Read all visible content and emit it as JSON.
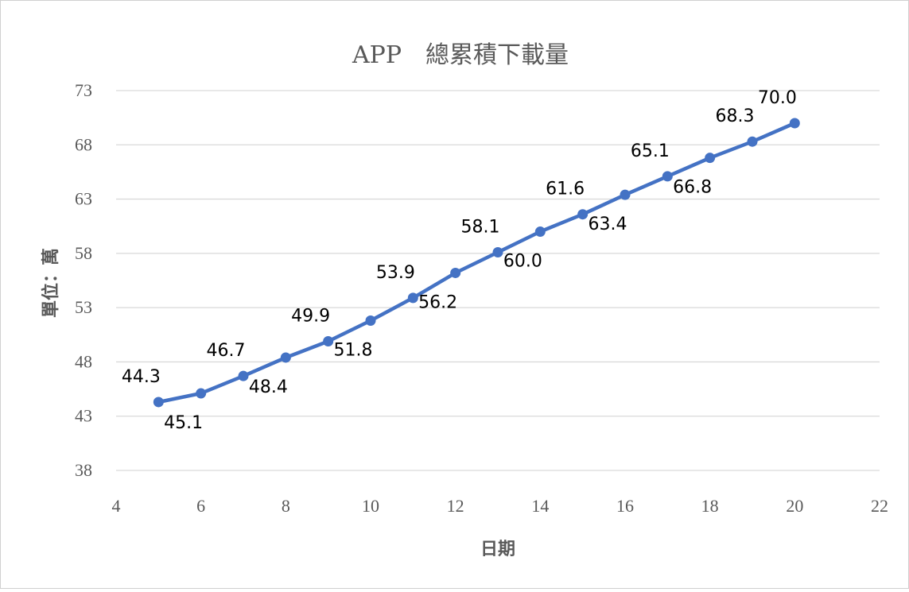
{
  "chart_data": {
    "type": "line",
    "title": "APP　總累積下載量",
    "xlabel": "日期",
    "ylabel": "單位：萬",
    "xlim": [
      4,
      22
    ],
    "ylim": [
      38,
      73
    ],
    "xticks": [
      4,
      6,
      8,
      10,
      12,
      14,
      16,
      18,
      20,
      22
    ],
    "yticks": [
      38,
      43,
      48,
      53,
      58,
      63,
      68,
      73
    ],
    "grid": true,
    "series": [
      {
        "color": "#4472c4",
        "points": [
          {
            "x": 5,
            "y": 44.3,
            "label": "44.3",
            "label_pos": "above"
          },
          {
            "x": 6,
            "y": 45.1,
            "label": "45.1",
            "label_pos": "below"
          },
          {
            "x": 7,
            "y": 46.7,
            "label": "46.7",
            "label_pos": "above"
          },
          {
            "x": 8,
            "y": 48.4,
            "label": "48.4",
            "label_pos": "below"
          },
          {
            "x": 9,
            "y": 49.9,
            "label": "49.9",
            "label_pos": "above"
          },
          {
            "x": 10,
            "y": 51.8,
            "label": "51.8",
            "label_pos": "below"
          },
          {
            "x": 11,
            "y": 53.9,
            "label": "53.9",
            "label_pos": "above"
          },
          {
            "x": 12,
            "y": 56.2,
            "label": "56.2",
            "label_pos": "below"
          },
          {
            "x": 13,
            "y": 58.1,
            "label": "58.1",
            "label_pos": "above"
          },
          {
            "x": 14,
            "y": 60.0,
            "label": "60.0",
            "label_pos": "below"
          },
          {
            "x": 15,
            "y": 61.6,
            "label": "61.6",
            "label_pos": "above"
          },
          {
            "x": 16,
            "y": 63.4,
            "label": "63.4",
            "label_pos": "below"
          },
          {
            "x": 17,
            "y": 65.1,
            "label": "65.1",
            "label_pos": "above"
          },
          {
            "x": 18,
            "y": 66.8,
            "label": "66.8",
            "label_pos": "below"
          },
          {
            "x": 19,
            "y": 68.3,
            "label": "68.3",
            "label_pos": "above"
          },
          {
            "x": 20,
            "y": 70.0,
            "label": "70.0",
            "label_pos": "above"
          }
        ]
      }
    ]
  }
}
